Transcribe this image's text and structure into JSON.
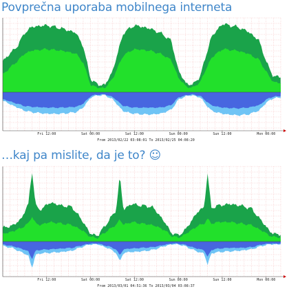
{
  "slide": {
    "title_1": "Povprečna uporaba mobilnega interneta",
    "title_2": "…kaj pa mislite, da je to? ☺"
  },
  "colors": {
    "upload_dark": "#1aa34a",
    "upload_light": "#22e02b",
    "download_dark": "#4766e0",
    "download_light": "#6fc4f5",
    "grid": "#f0a0a0",
    "axis_arrow": "#cc0000"
  },
  "chart_data": [
    {
      "type": "area",
      "title": "",
      "xlabel": "",
      "ylabel": "",
      "grid": true,
      "legend": "none",
      "x_ticks": [
        "Fri 12:00",
        "Sat 00:00",
        "Sat 12:00",
        "Sun 00:00",
        "Sun 12:00",
        "Mon 00:00"
      ],
      "tick_positions_hours": [
        12,
        24,
        36,
        48,
        60,
        72
      ],
      "x_range_hours": [
        0,
        76
      ],
      "caption": "From 2013/02/22 03:08:01 To 2013/02/25 04:08:20",
      "ylim": [
        -100,
        100
      ],
      "series": [
        {
          "direction": "up",
          "x_hours": [
            0,
            4,
            6,
            8,
            12,
            16,
            20,
            22,
            24,
            26,
            28,
            30,
            33,
            36,
            40,
            43,
            46,
            48,
            50,
            52,
            54,
            57,
            60,
            64,
            67,
            70,
            72,
            73,
            74,
            76
          ],
          "outer": [
            42,
            62,
            80,
            88,
            90,
            86,
            80,
            62,
            18,
            10,
            10,
            28,
            80,
            90,
            86,
            80,
            70,
            30,
            12,
            10,
            22,
            74,
            92,
            88,
            82,
            70,
            42,
            30,
            22,
            20
          ],
          "inner": [
            24,
            42,
            52,
            56,
            58,
            56,
            52,
            40,
            10,
            6,
            6,
            18,
            50,
            58,
            56,
            52,
            44,
            20,
            8,
            6,
            14,
            46,
            58,
            56,
            52,
            44,
            28,
            20,
            14,
            12
          ]
        },
        {
          "direction": "down",
          "x_hours": [
            0,
            4,
            6,
            8,
            12,
            16,
            20,
            22,
            24,
            26,
            28,
            30,
            33,
            36,
            40,
            43,
            46,
            48,
            50,
            52,
            54,
            57,
            60,
            64,
            67,
            70,
            72,
            73,
            74,
            76
          ],
          "outer": [
            22,
            40,
            48,
            52,
            56,
            56,
            52,
            40,
            14,
            8,
            8,
            18,
            50,
            56,
            58,
            56,
            46,
            20,
            10,
            8,
            14,
            48,
            56,
            60,
            58,
            48,
            28,
            20,
            16,
            14
          ],
          "inner": [
            18,
            30,
            36,
            38,
            40,
            40,
            38,
            30,
            10,
            6,
            6,
            12,
            36,
            40,
            40,
            40,
            34,
            14,
            8,
            6,
            10,
            34,
            40,
            42,
            40,
            34,
            20,
            14,
            12,
            10
          ]
        }
      ]
    },
    {
      "type": "area",
      "title": "",
      "xlabel": "",
      "ylabel": "",
      "grid": true,
      "legend": "none",
      "x_ticks": [
        "Fri 12:00",
        "Sat 00:00",
        "Sat 12:00",
        "Sun 00:00",
        "Sun 12:00",
        "Mon 00:00"
      ],
      "tick_positions_hours": [
        12,
        24,
        36,
        48,
        60,
        72
      ],
      "x_range_hours": [
        0,
        76
      ],
      "caption": "From 2013/03/01 04:51:36 To 2013/03/04 03:08:37",
      "ylim": [
        -100,
        100
      ],
      "series": [
        {
          "direction": "up",
          "x_hours": [
            0,
            3,
            5,
            7,
            8,
            9,
            10,
            13,
            16,
            19,
            22,
            24,
            26,
            29,
            31,
            32,
            33,
            35,
            38,
            41,
            44,
            46,
            48,
            50,
            53,
            55,
            56,
            57,
            59,
            62,
            65,
            68,
            71,
            73,
            74,
            76
          ],
          "outer": [
            18,
            22,
            30,
            50,
            95,
            48,
            42,
            52,
            48,
            46,
            26,
            10,
            8,
            28,
            42,
            88,
            42,
            50,
            48,
            46,
            28,
            12,
            8,
            16,
            38,
            46,
            90,
            45,
            48,
            50,
            48,
            44,
            26,
            14,
            10,
            10
          ],
          "inner": [
            10,
            14,
            18,
            24,
            34,
            24,
            22,
            26,
            24,
            22,
            14,
            6,
            5,
            16,
            22,
            30,
            22,
            26,
            24,
            22,
            16,
            8,
            5,
            10,
            20,
            24,
            30,
            24,
            26,
            26,
            24,
            22,
            14,
            8,
            6,
            6
          ]
        },
        {
          "direction": "down",
          "x_hours": [
            0,
            3,
            5,
            7,
            8,
            9,
            10,
            13,
            16,
            19,
            22,
            24,
            26,
            29,
            31,
            32,
            33,
            35,
            38,
            41,
            44,
            46,
            48,
            50,
            53,
            55,
            56,
            57,
            59,
            62,
            65,
            68,
            71,
            73,
            74,
            76
          ],
          "outer": [
            12,
            20,
            30,
            40,
            76,
            38,
            34,
            32,
            30,
            26,
            14,
            8,
            8,
            20,
            32,
            58,
            32,
            30,
            28,
            24,
            14,
            8,
            8,
            14,
            28,
            34,
            66,
            34,
            30,
            28,
            26,
            22,
            12,
            8,
            8,
            8
          ],
          "inner": [
            8,
            14,
            20,
            28,
            50,
            26,
            24,
            22,
            20,
            18,
            10,
            6,
            6,
            14,
            22,
            40,
            22,
            20,
            18,
            16,
            10,
            6,
            6,
            10,
            20,
            24,
            44,
            24,
            20,
            18,
            18,
            16,
            8,
            6,
            6,
            6
          ]
        }
      ]
    }
  ]
}
